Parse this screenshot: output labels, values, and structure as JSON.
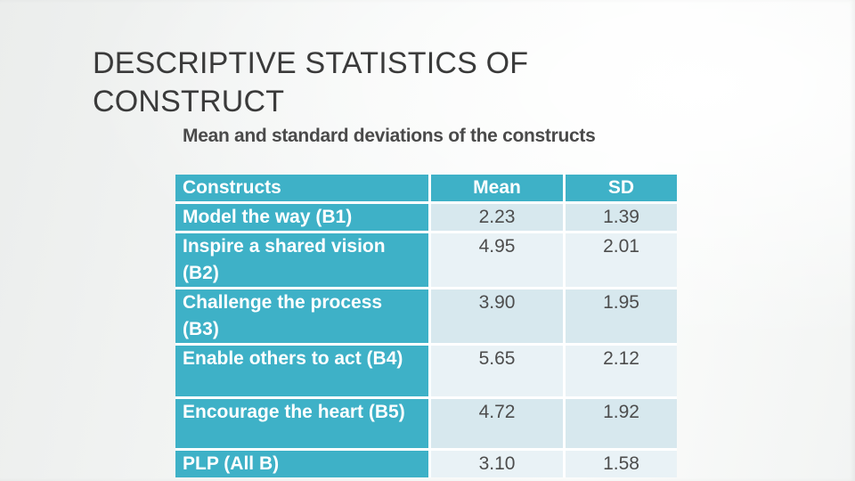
{
  "slide": {
    "title_line1": "DESCRIPTIVE STATISTICS OF",
    "title_line2": "CONSTRUCT",
    "subtitle": "Mean and standard deviations of the constructs"
  },
  "table": {
    "headers": {
      "construct": "Constructs",
      "mean": "Mean",
      "sd": "SD"
    },
    "rows": [
      {
        "construct": "Model the way (B1)",
        "mean": "2.23",
        "sd": "1.39"
      },
      {
        "construct": "Inspire a shared vision (B2)",
        "mean": "4.95",
        "sd": "2.01"
      },
      {
        "construct": "Challenge the process (B3)",
        "mean": "3.90",
        "sd": "1.95"
      },
      {
        "construct": "Enable others to act (B4)",
        "mean": "5.65",
        "sd": "2.12"
      },
      {
        "construct": "Encourage the heart (B5)",
        "mean": "4.72",
        "sd": "1.92"
      },
      {
        "construct": "PLP (All B)",
        "mean": "3.10",
        "sd": "1.58"
      }
    ]
  },
  "colors": {
    "accent_teal": "#3EB1C7",
    "value_band_dark": "#D7E8EE",
    "value_band_light": "#E9F2F6",
    "title_text": "#3A3A3A",
    "value_text": "#4D4D4D",
    "cell_gap_white": "#FFFFFF"
  }
}
